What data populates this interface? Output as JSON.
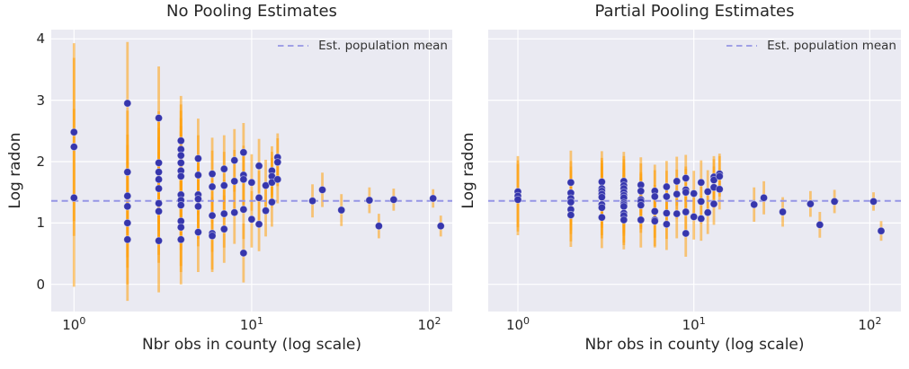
{
  "colors": {
    "figure_bg": "#ffffff",
    "panel_bg": "#eaeaf2",
    "grid": "#ffffff",
    "dot": "#3636ad",
    "dot_edge": "rgba(255,255,255,0.45)",
    "error_bar": "rgba(255,160,12,0.55)",
    "mean_line": "#9595e5",
    "text": "#262626",
    "legend_text": "#333333"
  },
  "chart_data": [
    {
      "type": "scatter",
      "title": "No Pooling Estimates",
      "xlabel": "Nbr obs in county (log scale)",
      "ylabel": "Log radon",
      "x_scale": "log",
      "xlim": [
        0.75,
        130
      ],
      "ylim": [
        -0.45,
        4.15
      ],
      "grid": true,
      "show_y_tick_labels": true,
      "y_ticks": [
        {
          "v": 0,
          "label": "0"
        },
        {
          "v": 1,
          "label": "1"
        },
        {
          "v": 2,
          "label": "2"
        },
        {
          "v": 3,
          "label": "3"
        },
        {
          "v": 4,
          "label": "4"
        }
      ],
      "x_ticks": [
        {
          "v": 1,
          "base": "10",
          "exp": "0"
        },
        {
          "v": 10,
          "base": "10",
          "exp": "1"
        },
        {
          "v": 100,
          "base": "10",
          "exp": "2"
        }
      ],
      "legend": {
        "label": "Est. population mean",
        "position": "upper right"
      },
      "mean_line": 1.36,
      "points_format": [
        "n_obs",
        "estimate",
        "err_lo",
        "err_hi"
      ],
      "points": [
        [
          1,
          2.48,
          1.03,
          3.93
        ],
        [
          1,
          2.24,
          0.79,
          3.69
        ],
        [
          1,
          1.41,
          -0.04,
          2.86
        ],
        [
          2,
          2.95,
          1.95,
          3.95
        ],
        [
          2,
          1.83,
          0.83,
          2.83
        ],
        [
          2,
          1.44,
          0.44,
          2.44
        ],
        [
          2,
          1.27,
          0.27,
          2.27
        ],
        [
          2,
          1.0,
          0.0,
          2.0
        ],
        [
          2,
          0.73,
          -0.27,
          1.73
        ],
        [
          3,
          2.71,
          1.87,
          3.55
        ],
        [
          3,
          1.98,
          1.14,
          2.82
        ],
        [
          3,
          1.83,
          0.99,
          2.67
        ],
        [
          3,
          1.71,
          0.87,
          2.55
        ],
        [
          3,
          1.56,
          0.72,
          2.4
        ],
        [
          3,
          1.32,
          0.48,
          2.16
        ],
        [
          3,
          1.19,
          0.35,
          2.03
        ],
        [
          3,
          0.71,
          -0.13,
          1.55
        ],
        [
          4,
          2.34,
          1.61,
          3.07
        ],
        [
          4,
          2.2,
          1.47,
          2.93
        ],
        [
          4,
          2.1,
          1.37,
          2.83
        ],
        [
          4,
          1.98,
          1.25,
          2.71
        ],
        [
          4,
          1.85,
          1.12,
          2.58
        ],
        [
          4,
          1.76,
          1.03,
          2.49
        ],
        [
          4,
          1.46,
          0.73,
          2.19
        ],
        [
          4,
          1.37,
          0.64,
          2.1
        ],
        [
          4,
          1.29,
          0.56,
          2.02
        ],
        [
          4,
          1.03,
          0.3,
          1.76
        ],
        [
          4,
          0.93,
          0.2,
          1.66
        ],
        [
          4,
          0.73,
          0.0,
          1.46
        ],
        [
          5,
          2.05,
          1.4,
          2.7
        ],
        [
          5,
          1.78,
          1.13,
          2.43
        ],
        [
          5,
          1.46,
          0.81,
          2.11
        ],
        [
          5,
          1.39,
          0.74,
          2.04
        ],
        [
          5,
          1.27,
          0.62,
          1.92
        ],
        [
          5,
          0.85,
          0.2,
          1.5
        ],
        [
          6,
          1.8,
          1.21,
          2.39
        ],
        [
          6,
          1.59,
          1.0,
          2.18
        ],
        [
          6,
          1.12,
          0.53,
          1.71
        ],
        [
          6,
          0.83,
          0.24,
          1.42
        ],
        [
          6,
          0.79,
          0.2,
          1.38
        ],
        [
          7,
          1.88,
          1.33,
          2.43
        ],
        [
          7,
          1.61,
          1.06,
          2.16
        ],
        [
          7,
          1.15,
          0.6,
          1.7
        ],
        [
          7,
          0.9,
          0.35,
          1.45
        ],
        [
          8,
          2.02,
          1.51,
          2.53
        ],
        [
          8,
          1.68,
          1.17,
          2.19
        ],
        [
          8,
          1.17,
          0.66,
          1.68
        ],
        [
          9,
          2.15,
          1.67,
          2.63
        ],
        [
          9,
          1.78,
          1.3,
          2.26
        ],
        [
          9,
          1.71,
          1.23,
          2.19
        ],
        [
          9,
          1.22,
          0.74,
          1.7
        ],
        [
          9,
          0.51,
          0.03,
          0.99
        ],
        [
          10,
          1.66,
          1.2,
          2.12
        ],
        [
          10,
          1.06,
          0.6,
          1.52
        ],
        [
          11,
          1.93,
          1.49,
          2.37
        ],
        [
          11,
          1.41,
          0.97,
          1.85
        ],
        [
          11,
          0.98,
          0.54,
          1.42
        ],
        [
          12,
          1.61,
          1.19,
          2.03
        ],
        [
          12,
          1.2,
          0.78,
          1.62
        ],
        [
          13,
          1.85,
          1.45,
          2.25
        ],
        [
          13,
          1.76,
          1.36,
          2.16
        ],
        [
          13,
          1.66,
          1.26,
          2.06
        ],
        [
          13,
          1.34,
          0.94,
          1.74
        ],
        [
          14,
          2.07,
          1.68,
          2.46
        ],
        [
          14,
          1.99,
          1.6,
          2.38
        ],
        [
          14,
          1.71,
          1.32,
          2.1
        ],
        [
          22,
          1.36,
          1.09,
          1.63
        ],
        [
          25,
          1.54,
          1.26,
          1.82
        ],
        [
          32,
          1.21,
          0.95,
          1.47
        ],
        [
          46,
          1.37,
          1.16,
          1.58
        ],
        [
          52,
          0.95,
          0.75,
          1.15
        ],
        [
          63,
          1.38,
          1.2,
          1.56
        ],
        [
          105,
          1.4,
          1.25,
          1.55
        ],
        [
          116,
          0.95,
          0.78,
          1.12
        ]
      ]
    },
    {
      "type": "scatter",
      "title": "Partial Pooling Estimates",
      "xlabel": "Nbr obs in county (log scale)",
      "ylabel": "Log radon",
      "x_scale": "log",
      "xlim": [
        0.75,
        130
      ],
      "ylim": [
        -0.45,
        4.15
      ],
      "grid": true,
      "show_y_tick_labels": false,
      "y_ticks": [
        {
          "v": 0,
          "label": "0"
        },
        {
          "v": 1,
          "label": "1"
        },
        {
          "v": 2,
          "label": "2"
        },
        {
          "v": 3,
          "label": "3"
        },
        {
          "v": 4,
          "label": "4"
        }
      ],
      "x_ticks": [
        {
          "v": 1,
          "base": "10",
          "exp": "0"
        },
        {
          "v": 10,
          "base": "10",
          "exp": "1"
        },
        {
          "v": 100,
          "base": "10",
          "exp": "2"
        }
      ],
      "legend": {
        "label": "Est. population mean",
        "position": "upper right"
      },
      "mean_line": 1.36,
      "points_format": [
        "n_obs",
        "estimate",
        "err_lo",
        "err_hi"
      ],
      "points": [
        [
          1,
          1.51,
          0.93,
          2.09
        ],
        [
          1,
          1.44,
          0.86,
          2.02
        ],
        [
          1,
          1.38,
          0.8,
          1.96
        ],
        [
          2,
          1.66,
          1.14,
          2.18
        ],
        [
          2,
          1.49,
          0.97,
          2.01
        ],
        [
          2,
          1.4,
          0.88,
          1.92
        ],
        [
          2,
          1.34,
          0.82,
          1.86
        ],
        [
          2,
          1.22,
          0.7,
          1.74
        ],
        [
          2,
          1.13,
          0.61,
          1.65
        ],
        [
          3,
          1.67,
          1.17,
          2.17
        ],
        [
          3,
          1.56,
          1.06,
          2.06
        ],
        [
          3,
          1.52,
          1.02,
          2.02
        ],
        [
          3,
          1.47,
          0.97,
          1.97
        ],
        [
          3,
          1.42,
          0.92,
          1.92
        ],
        [
          3,
          1.3,
          0.8,
          1.8
        ],
        [
          3,
          1.25,
          0.75,
          1.75
        ],
        [
          3,
          1.09,
          0.59,
          1.59
        ],
        [
          4,
          1.68,
          1.2,
          2.16
        ],
        [
          4,
          1.61,
          1.13,
          2.09
        ],
        [
          4,
          1.56,
          1.08,
          2.04
        ],
        [
          4,
          1.5,
          1.02,
          1.98
        ],
        [
          4,
          1.45,
          0.97,
          1.93
        ],
        [
          4,
          1.41,
          0.93,
          1.89
        ],
        [
          4,
          1.33,
          0.85,
          1.81
        ],
        [
          4,
          1.3,
          0.82,
          1.78
        ],
        [
          4,
          1.27,
          0.79,
          1.75
        ],
        [
          4,
          1.16,
          0.68,
          1.64
        ],
        [
          4,
          1.12,
          0.64,
          1.6
        ],
        [
          4,
          1.05,
          0.57,
          1.53
        ],
        [
          5,
          1.62,
          1.17,
          2.07
        ],
        [
          5,
          1.52,
          1.07,
          1.97
        ],
        [
          5,
          1.38,
          0.93,
          1.83
        ],
        [
          5,
          1.35,
          0.9,
          1.8
        ],
        [
          5,
          1.29,
          0.84,
          1.74
        ],
        [
          5,
          1.05,
          0.6,
          1.5
        ],
        [
          6,
          1.52,
          1.09,
          1.95
        ],
        [
          6,
          1.43,
          1.0,
          1.86
        ],
        [
          6,
          1.19,
          0.76,
          1.62
        ],
        [
          6,
          1.05,
          0.62,
          1.48
        ],
        [
          6,
          1.03,
          0.6,
          1.46
        ],
        [
          7,
          1.59,
          1.17,
          2.01
        ],
        [
          7,
          1.43,
          1.01,
          1.85
        ],
        [
          7,
          1.16,
          0.74,
          1.58
        ],
        [
          7,
          0.98,
          0.56,
          1.4
        ],
        [
          8,
          1.68,
          1.28,
          2.08
        ],
        [
          8,
          1.47,
          1.07,
          1.87
        ],
        [
          8,
          1.15,
          0.75,
          1.55
        ],
        [
          9,
          1.73,
          1.35,
          2.11
        ],
        [
          9,
          1.54,
          1.16,
          1.92
        ],
        [
          9,
          1.5,
          1.12,
          1.88
        ],
        [
          9,
          1.18,
          0.8,
          1.56
        ],
        [
          9,
          0.83,
          0.45,
          1.21
        ],
        [
          10,
          1.48,
          1.11,
          1.85
        ],
        [
          10,
          1.1,
          0.73,
          1.47
        ],
        [
          11,
          1.66,
          1.3,
          2.02
        ],
        [
          11,
          1.35,
          0.99,
          1.71
        ],
        [
          11,
          1.07,
          0.71,
          1.43
        ],
        [
          12,
          1.51,
          1.16,
          1.86
        ],
        [
          12,
          1.17,
          0.82,
          1.52
        ],
        [
          13,
          1.75,
          1.41,
          2.09
        ],
        [
          13,
          1.7,
          1.36,
          2.04
        ],
        [
          13,
          1.58,
          1.24,
          1.92
        ],
        [
          13,
          1.31,
          0.97,
          1.65
        ],
        [
          14,
          1.8,
          1.47,
          2.13
        ],
        [
          14,
          1.76,
          1.43,
          2.09
        ],
        [
          14,
          1.55,
          1.22,
          1.88
        ],
        [
          22,
          1.3,
          1.02,
          1.58
        ],
        [
          25,
          1.41,
          1.14,
          1.68
        ],
        [
          32,
          1.18,
          0.94,
          1.42
        ],
        [
          46,
          1.31,
          1.1,
          1.52
        ],
        [
          52,
          0.97,
          0.76,
          1.18
        ],
        [
          63,
          1.35,
          1.16,
          1.54
        ],
        [
          105,
          1.35,
          1.2,
          1.5
        ],
        [
          116,
          0.87,
          0.71,
          1.03
        ]
      ]
    }
  ]
}
